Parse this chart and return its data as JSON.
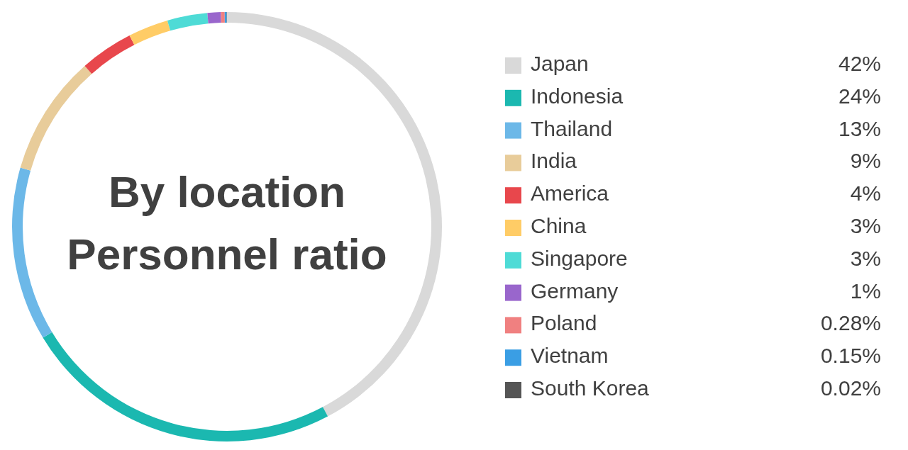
{
  "chart_data": {
    "type": "donut",
    "title": "By location\nPersonnel ratio",
    "categories": [
      "Japan",
      "Indonesia",
      "Thailand",
      "India",
      "America",
      "China",
      "Singapore",
      "Germany",
      "Poland",
      "Vietnam",
      "South Korea"
    ],
    "values": [
      42,
      24,
      13,
      9,
      4,
      3,
      3,
      1,
      0.28,
      0.15,
      0.02
    ],
    "value_labels": [
      "42%",
      "24%",
      "13%",
      "9%",
      "4%",
      "3%",
      "3%",
      "1%",
      "0.28%",
      "0.15%",
      "0.02%"
    ],
    "colors": [
      "#d9d9d9",
      "#1bb8b0",
      "#6cb8e8",
      "#e8cc9a",
      "#e8474c",
      "#ffcc66",
      "#4edbd6",
      "#9966cc",
      "#f08080",
      "#3a9ee4",
      "#555555"
    ],
    "legend": "right"
  }
}
